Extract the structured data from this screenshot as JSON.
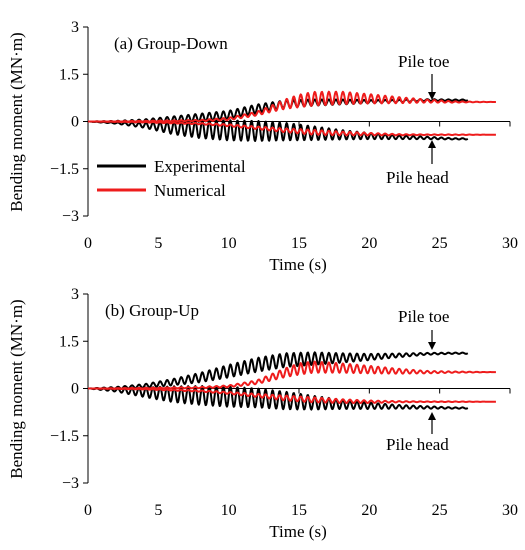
{
  "chart_data": [
    {
      "type": "line",
      "title": "(a) Group-Down",
      "xlabel": "Time (s)",
      "ylabel": "Bending moment (MN·m)",
      "xlim": [
        0,
        30
      ],
      "ylim": [
        -3,
        3
      ],
      "xticks": [
        "0",
        "5",
        "10",
        "15",
        "20",
        "25",
        "30"
      ],
      "yticks": [
        "3",
        "1.5",
        "0",
        "−1.5",
        "−3"
      ],
      "grid": false,
      "legend": {
        "position": "center-left"
      },
      "colors": {
        "Experimental": "#000000",
        "Numerical": "#ee1c1c"
      },
      "annotations": [
        {
          "text": "Pile toe",
          "x": 24.5,
          "y": 0.65
        },
        {
          "text": "Pile head",
          "x": 24.5,
          "y": -0.5
        }
      ],
      "series": [
        {
          "name": "Experimental",
          "location": "Pile toe",
          "x_end": 27,
          "freq": 2.0,
          "x": [
            0,
            2,
            4,
            6,
            8,
            10,
            12,
            14,
            16,
            18,
            20,
            22,
            24,
            26,
            27
          ],
          "y": [
            0,
            0,
            0.02,
            0.06,
            0.12,
            0.2,
            0.4,
            0.55,
            0.6,
            0.62,
            0.63,
            0.65,
            0.68,
            0.68,
            0.68
          ],
          "amp": [
            0,
            0.02,
            0.05,
            0.1,
            0.13,
            0.14,
            0.14,
            0.12,
            0.1,
            0.08,
            0.05,
            0.04,
            0.03,
            0.02,
            0.02
          ]
        },
        {
          "name": "Experimental",
          "location": "Pile head",
          "x_end": 27,
          "freq": 2.0,
          "x": [
            0,
            2,
            4,
            6,
            8,
            10,
            12,
            14,
            16,
            18,
            20,
            22,
            24,
            26,
            27
          ],
          "y": [
            0,
            -0.05,
            -0.12,
            -0.2,
            -0.25,
            -0.28,
            -0.3,
            -0.32,
            -0.37,
            -0.42,
            -0.46,
            -0.5,
            -0.52,
            -0.55,
            -0.55
          ],
          "amp": [
            0,
            0.02,
            0.08,
            0.2,
            0.28,
            0.32,
            0.32,
            0.28,
            0.22,
            0.15,
            0.1,
            0.06,
            0.04,
            0.02,
            0.02
          ]
        },
        {
          "name": "Numerical",
          "location": "Pile toe",
          "x_end": 29,
          "freq": 2.0,
          "x": [
            0,
            4,
            8,
            10,
            12,
            13,
            14,
            15,
            16,
            18,
            20,
            22,
            24,
            26,
            29
          ],
          "y": [
            0,
            0.01,
            0.03,
            0.08,
            0.25,
            0.4,
            0.55,
            0.65,
            0.72,
            0.75,
            0.72,
            0.68,
            0.65,
            0.62,
            0.62
          ],
          "amp": [
            0,
            0.01,
            0.02,
            0.04,
            0.06,
            0.1,
            0.15,
            0.2,
            0.22,
            0.2,
            0.15,
            0.1,
            0.05,
            0.02,
            0.0
          ]
        },
        {
          "name": "Numerical",
          "location": "Pile head",
          "x_end": 29,
          "freq": 2.0,
          "x": [
            0,
            4,
            8,
            10,
            12,
            14,
            16,
            18,
            20,
            22,
            24,
            26,
            29
          ],
          "y": [
            0,
            -0.02,
            -0.07,
            -0.12,
            -0.2,
            -0.28,
            -0.34,
            -0.38,
            -0.4,
            -0.42,
            -0.42,
            -0.42,
            -0.42
          ],
          "amp": [
            0,
            0.01,
            0.02,
            0.03,
            0.04,
            0.06,
            0.08,
            0.06,
            0.04,
            0.02,
            0.01,
            0.01,
            0.0
          ]
        }
      ]
    },
    {
      "type": "line",
      "title": "(b) Group-Up",
      "xlabel": "Time (s)",
      "ylabel": "Bending moment (MN·m)",
      "xlim": [
        0,
        30
      ],
      "ylim": [
        -3,
        3
      ],
      "xticks": [
        "0",
        "5",
        "10",
        "15",
        "20",
        "25",
        "30"
      ],
      "yticks": [
        "3",
        "1.5",
        "0",
        "−1.5",
        "−3"
      ],
      "grid": false,
      "colors": {
        "Experimental": "#000000",
        "Numerical": "#ee1c1c"
      },
      "annotations": [
        {
          "text": "Pile toe",
          "x": 24.5,
          "y": 1.1
        },
        {
          "text": "Pile head",
          "x": 24.5,
          "y": -0.6
        }
      ],
      "series": [
        {
          "name": "Experimental",
          "location": "Pile toe",
          "x_end": 27,
          "freq": 2.0,
          "x": [
            0,
            2,
            4,
            6,
            8,
            10,
            12,
            14,
            16,
            18,
            20,
            22,
            24,
            26,
            27
          ],
          "y": [
            0,
            0.02,
            0.08,
            0.2,
            0.35,
            0.55,
            0.75,
            0.9,
            0.95,
            0.97,
            1.0,
            1.05,
            1.1,
            1.12,
            1.12
          ],
          "amp": [
            0,
            0.03,
            0.06,
            0.1,
            0.15,
            0.2,
            0.22,
            0.22,
            0.2,
            0.15,
            0.1,
            0.06,
            0.03,
            0.02,
            0.02
          ]
        },
        {
          "name": "Experimental",
          "location": "Pile head",
          "x_end": 27,
          "freq": 2.0,
          "x": [
            0,
            2,
            4,
            6,
            8,
            10,
            12,
            14,
            16,
            18,
            20,
            22,
            24,
            26,
            27
          ],
          "y": [
            0,
            -0.05,
            -0.12,
            -0.18,
            -0.22,
            -0.26,
            -0.3,
            -0.38,
            -0.45,
            -0.5,
            -0.55,
            -0.58,
            -0.6,
            -0.62,
            -0.62
          ],
          "amp": [
            0,
            0.05,
            0.15,
            0.25,
            0.3,
            0.32,
            0.3,
            0.28,
            0.22,
            0.15,
            0.1,
            0.06,
            0.04,
            0.02,
            0.02
          ]
        },
        {
          "name": "Numerical",
          "location": "Pile toe",
          "x_end": 29,
          "freq": 2.0,
          "x": [
            0,
            4,
            8,
            10,
            12,
            13,
            14,
            15,
            16,
            18,
            20,
            22,
            24,
            26,
            29
          ],
          "y": [
            0,
            0.01,
            0.03,
            0.07,
            0.2,
            0.35,
            0.5,
            0.62,
            0.68,
            0.65,
            0.6,
            0.55,
            0.52,
            0.52,
            0.52
          ],
          "amp": [
            0,
            0.01,
            0.02,
            0.03,
            0.06,
            0.1,
            0.14,
            0.18,
            0.18,
            0.15,
            0.12,
            0.08,
            0.04,
            0.02,
            0.0
          ]
        },
        {
          "name": "Numerical",
          "location": "Pile head",
          "x_end": 29,
          "freq": 2.0,
          "x": [
            0,
            4,
            8,
            10,
            12,
            14,
            16,
            18,
            20,
            22,
            24,
            26,
            29
          ],
          "y": [
            0,
            -0.02,
            -0.08,
            -0.14,
            -0.22,
            -0.3,
            -0.36,
            -0.4,
            -0.42,
            -0.42,
            -0.42,
            -0.42,
            -0.42
          ],
          "amp": [
            0,
            0.01,
            0.02,
            0.03,
            0.05,
            0.08,
            0.08,
            0.06,
            0.04,
            0.02,
            0.01,
            0.01,
            0.0
          ]
        }
      ]
    }
  ]
}
